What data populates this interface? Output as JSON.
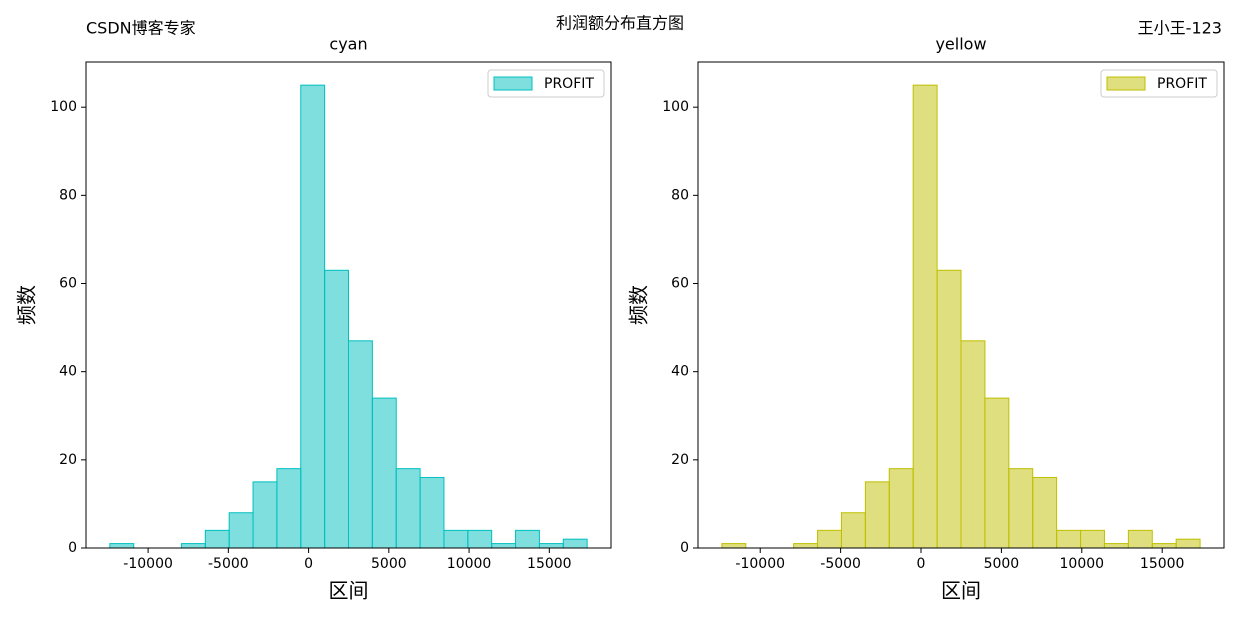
{
  "title": "利润额分布直方图",
  "left_note": "CSDN博客专家",
  "right_note": "王小王-123",
  "chart_data": [
    {
      "type": "histogram",
      "title": "cyan",
      "xlabel": "区间",
      "ylabel": "频数",
      "bins": [
        -12383,
        -10896,
        -9409,
        -7922,
        -6435,
        -4948,
        -3461,
        -1974,
        -487,
        1000,
        2487,
        3974,
        5461,
        6948,
        8435,
        9922,
        11409,
        12896,
        14383,
        15870,
        17357
      ],
      "series": [
        {
          "name": "PROFIT",
          "color": "#00bfbf",
          "alpha": 0.5,
          "values": [
            1,
            0,
            0,
            1,
            4,
            8,
            15,
            18,
            105,
            63,
            47,
            34,
            18,
            16,
            4,
            4,
            1,
            4,
            1,
            2
          ]
        }
      ],
      "xlim": [
        -13870,
        18844
      ],
      "ylim": [
        0,
        110.25
      ],
      "xticks": [
        -10000,
        -5000,
        0,
        5000,
        10000,
        15000
      ],
      "yticks": [
        0,
        20,
        40,
        60,
        80,
        100
      ],
      "legend": "upper right"
    },
    {
      "type": "histogram",
      "title": "yellow",
      "xlabel": "区间",
      "ylabel": "频数",
      "bins": [
        -12383,
        -10896,
        -9409,
        -7922,
        -6435,
        -4948,
        -3461,
        -1974,
        -487,
        1000,
        2487,
        3974,
        5461,
        6948,
        8435,
        9922,
        11409,
        12896,
        14383,
        15870,
        17357
      ],
      "series": [
        {
          "name": "PROFIT",
          "color": "#bfbf00",
          "alpha": 0.5,
          "values": [
            1,
            0,
            0,
            1,
            4,
            8,
            15,
            18,
            105,
            63,
            47,
            34,
            18,
            16,
            4,
            4,
            1,
            4,
            1,
            2
          ]
        }
      ],
      "xlim": [
        -13870,
        18844
      ],
      "ylim": [
        0,
        110.25
      ],
      "xticks": [
        -10000,
        -5000,
        0,
        5000,
        10000,
        15000
      ],
      "yticks": [
        0,
        20,
        40,
        60,
        80,
        100
      ],
      "legend": "upper right"
    }
  ]
}
